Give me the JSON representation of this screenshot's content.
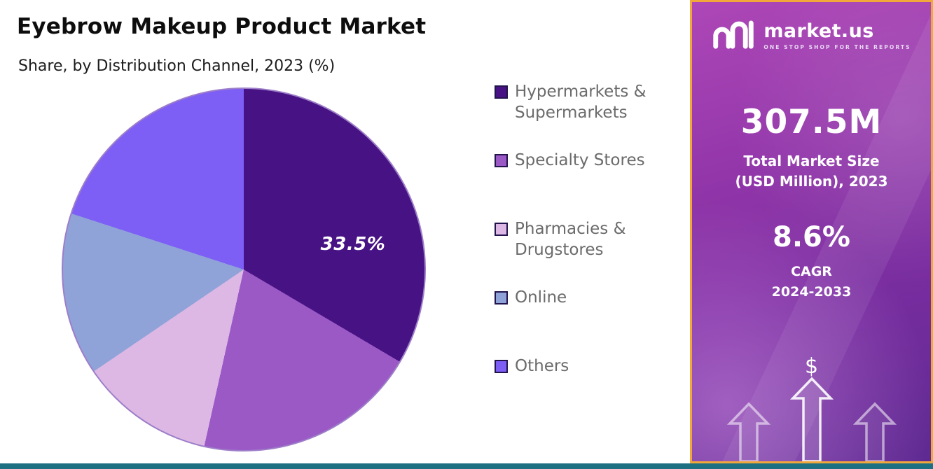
{
  "header": {
    "title": "Eyebrow Makeup Product Market",
    "subtitle": "Share, by Distribution Channel, 2023 (%)"
  },
  "chart_data": {
    "type": "pie",
    "title": "Eyebrow Makeup Product Market Share, by Distribution Channel, 2023 (%)",
    "labels": [
      "Hypermarkets & Supermarkets",
      "Specialty Stores",
      "Pharmacies & Drugstores",
      "Online",
      "Others"
    ],
    "values": [
      33.5,
      20,
      12,
      14.5,
      20
    ],
    "unit": "%",
    "colors": [
      "#471284",
      "#9b59c6",
      "#ddb8e4",
      "#8fa3d8",
      "#7d5ff5"
    ],
    "data_labels": [
      {
        "slice": "Hypermarkets & Supermarkets",
        "text": "33.5%",
        "x_pct": 80,
        "y_pct": 43
      }
    ],
    "legend_position": "right",
    "start_angle_deg": 0
  },
  "panel": {
    "brand": {
      "name": "market.us",
      "tagline": "ONE STOP SHOP FOR THE REPORTS"
    },
    "market_size": {
      "value": "307.5M",
      "label_line1": "Total Market Size",
      "label_line2": "(USD Million), 2023"
    },
    "cagr": {
      "value": "8.6%",
      "label_line1": "CAGR",
      "label_line2": "2024-2033"
    },
    "dollar_sign": "$"
  },
  "colors": {
    "panel_border": "#f2a73b",
    "bottom_bar": "#1c7082",
    "legend_text": "#6b6b6b",
    "slice_label_color": "#ffffff"
  }
}
